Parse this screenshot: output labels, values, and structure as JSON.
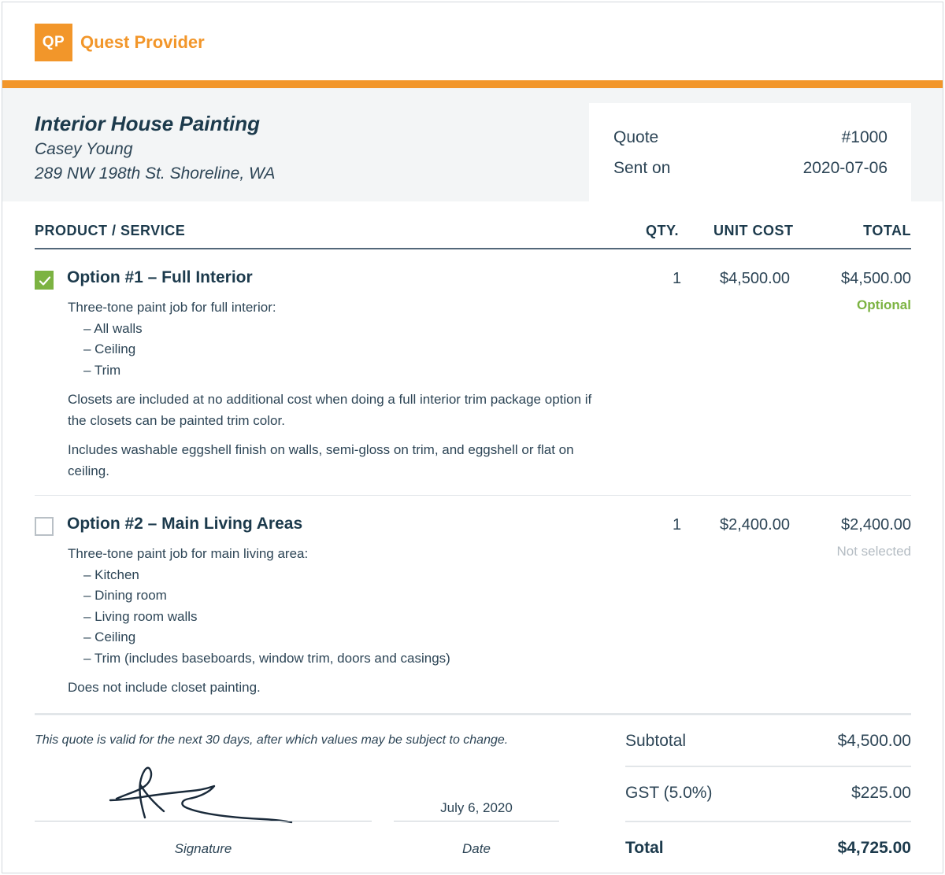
{
  "brand": {
    "logo_text": "QP",
    "name": "Quest Provider",
    "accent_color": "#f2962a"
  },
  "job": {
    "title": "Interior House Painting",
    "client_name": "Casey Young",
    "client_address": "289 NW 198th St. Shoreline, WA"
  },
  "quote": {
    "label": "Quote",
    "number": "#1000",
    "sent_label": "Sent on",
    "sent_date": "2020-07-06"
  },
  "table": {
    "headers": {
      "product": "PRODUCT / SERVICE",
      "qty": "QTY.",
      "unit_cost": "UNIT COST",
      "total": "TOTAL"
    },
    "items": [
      {
        "checked": true,
        "name": "Option #1 – Full Interior",
        "qty": "1",
        "unit_cost": "$4,500.00",
        "total": "$4,500.00",
        "status": "Optional",
        "intro": "Three-tone paint job for full interior:",
        "bullets": [
          "– All walls",
          "– Ceiling",
          "– Trim"
        ],
        "paragraphs": [
          "Closets are included at no additional cost when doing a full interior trim package option if the closets can be painted trim color.",
          "Includes washable eggshell finish on walls, semi-gloss on trim, and eggshell or flat on ceiling."
        ]
      },
      {
        "checked": false,
        "name": "Option #2 – Main Living Areas",
        "qty": "1",
        "unit_cost": "$2,400.00",
        "total": "$2,400.00",
        "status": "Not selected",
        "intro": "Three-tone paint job for main living area:",
        "bullets": [
          "– Kitchen",
          "– Dining room",
          "– Living room walls",
          "– Ceiling",
          "– Trim (includes baseboards, window trim, doors and casings)"
        ],
        "paragraphs": [
          "Does not include closet painting."
        ]
      }
    ]
  },
  "footer": {
    "validity_note": "This quote is valid for the next 30 days, after which values may be subject to change.",
    "signature_label": "Signature",
    "date_value": "July 6, 2020",
    "date_label": "Date"
  },
  "totals": {
    "subtotal_label": "Subtotal",
    "subtotal_value": "$4,500.00",
    "tax_label": "GST (5.0%)",
    "tax_value": "$225.00",
    "total_label": "Total",
    "total_value": "$4,725.00"
  }
}
